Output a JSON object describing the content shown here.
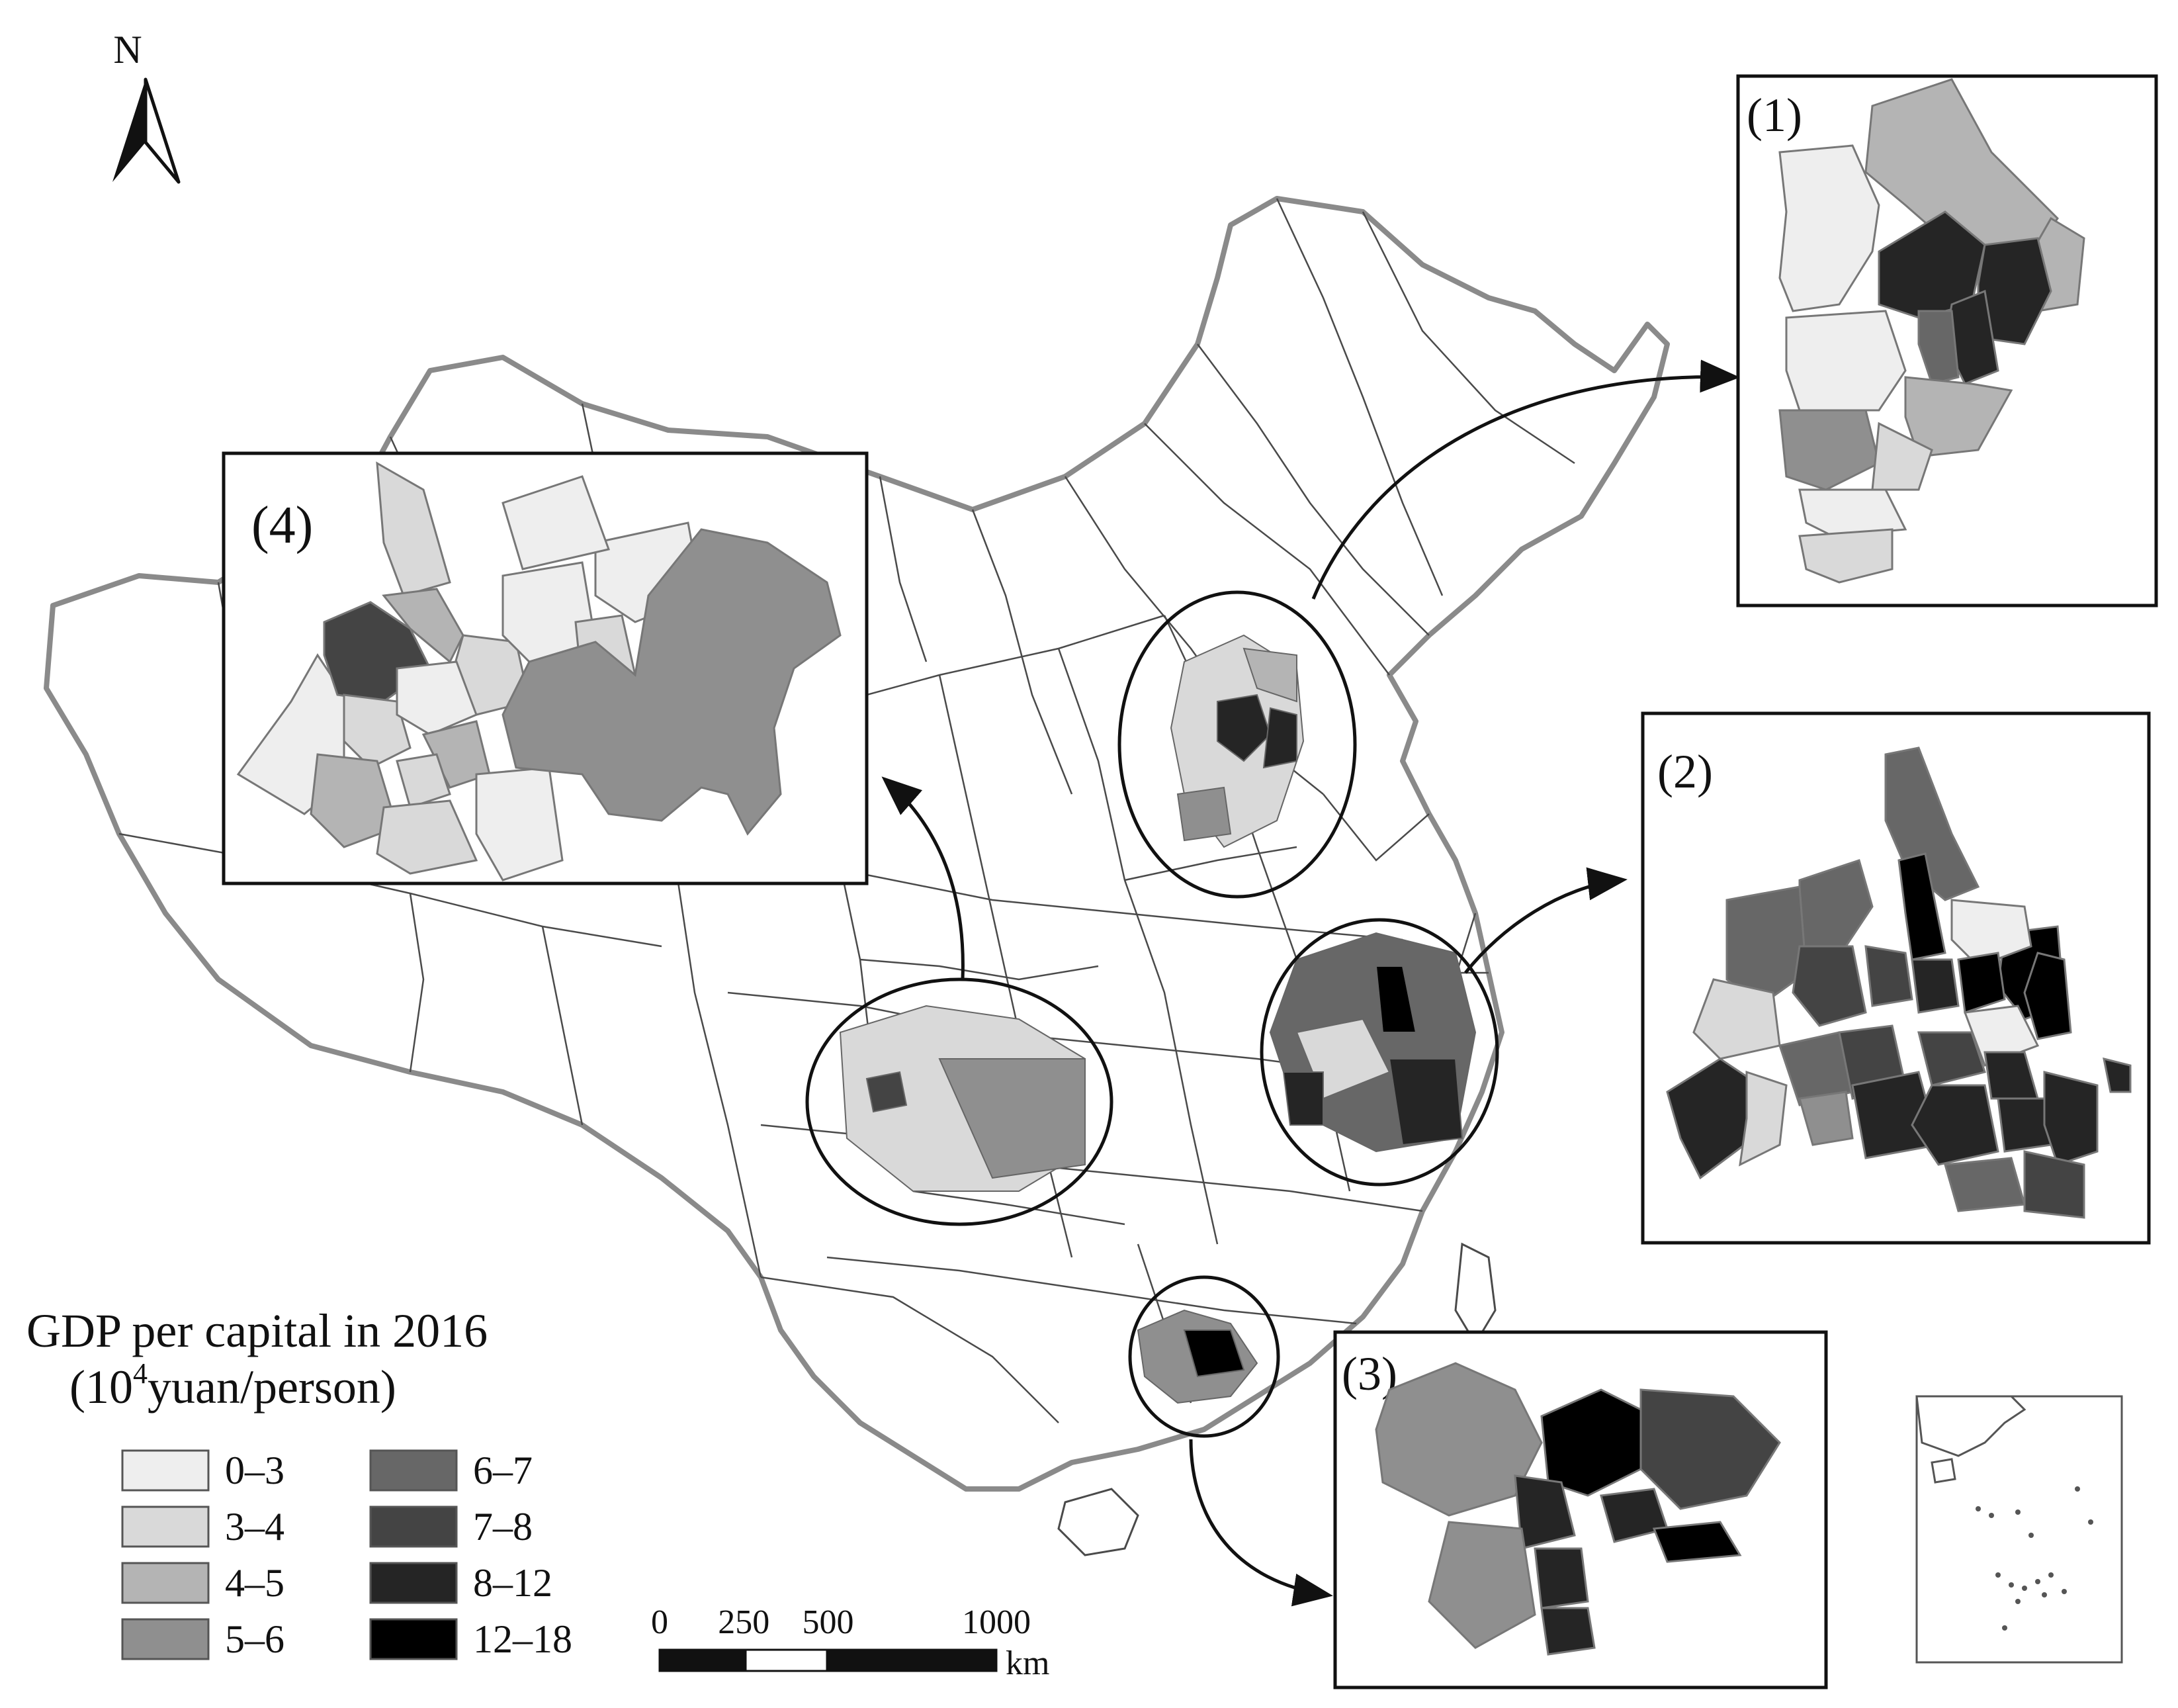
{
  "north_label": "N",
  "legend": {
    "title": "GDP per capital in 2016",
    "unit_pre": "(10",
    "unit_sup": "4",
    "unit_post": "yuan/person)",
    "items": [
      {
        "label": "0–3",
        "color": "#eeeeee"
      },
      {
        "label": "3–4",
        "color": "#d9d9d9"
      },
      {
        "label": "4–5",
        "color": "#b4b4b4"
      },
      {
        "label": "5–6",
        "color": "#8f8f8f"
      },
      {
        "label": "6–7",
        "color": "#676767"
      },
      {
        "label": "7–8",
        "color": "#444444"
      },
      {
        "label": "8–12",
        "color": "#252525"
      },
      {
        "label": "12–18",
        "color": "#000000"
      }
    ]
  },
  "scale_bar": {
    "ticks": [
      "0",
      "250",
      "500",
      "1000"
    ],
    "unit": "km"
  },
  "insets": [
    {
      "label": "(1)"
    },
    {
      "label": "(2)"
    },
    {
      "label": "(3)"
    },
    {
      "label": "(4)"
    }
  ]
}
